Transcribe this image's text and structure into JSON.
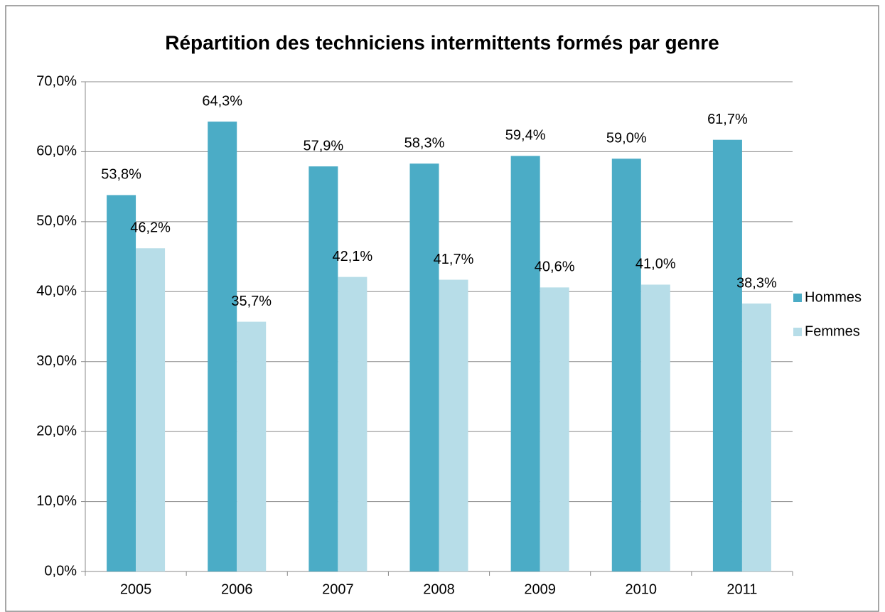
{
  "chart_data": {
    "type": "bar",
    "title": "Répartition des techniciens intermittents formés par genre",
    "categories": [
      "2005",
      "2006",
      "2007",
      "2008",
      "2009",
      "2010",
      "2011"
    ],
    "series": [
      {
        "name": "Hommes",
        "color": "#4bacc6",
        "values": [
          53.8,
          64.3,
          57.9,
          58.3,
          59.4,
          59.0,
          61.7
        ],
        "value_labels": [
          "53,8%",
          "64,3%",
          "57,9%",
          "58,3%",
          "59,4%",
          "59,0%",
          "61,7%"
        ]
      },
      {
        "name": "Femmes",
        "color": "#b7dde8",
        "values": [
          46.2,
          35.7,
          42.1,
          41.7,
          40.6,
          41.0,
          38.3
        ],
        "value_labels": [
          "46,2%",
          "35,7%",
          "42,1%",
          "41,7%",
          "40,6%",
          "41,0%",
          "38,3%"
        ]
      }
    ],
    "ylim": [
      0,
      70
    ],
    "yticks": [
      {
        "value": 0,
        "label": "0,0%"
      },
      {
        "value": 10,
        "label": "10,0%"
      },
      {
        "value": 20,
        "label": "20,0%"
      },
      {
        "value": 30,
        "label": "30,0%"
      },
      {
        "value": 40,
        "label": "40,0%"
      },
      {
        "value": 50,
        "label": "50,0%"
      },
      {
        "value": 60,
        "label": "60,0%"
      },
      {
        "value": 70,
        "label": "70,0%"
      }
    ],
    "grid": true,
    "legend": "right"
  }
}
